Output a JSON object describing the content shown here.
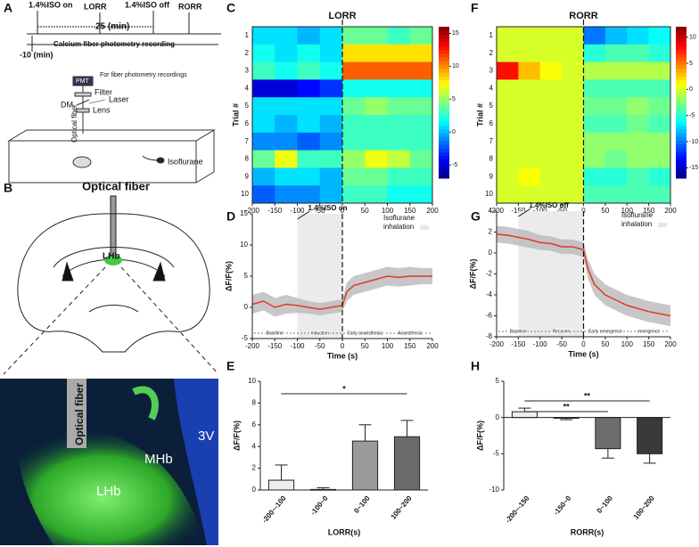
{
  "figure": {
    "panel_labels": [
      "A",
      "B",
      "C",
      "D",
      "E",
      "F",
      "G",
      "H"
    ],
    "timeline": {
      "iso_on": "1.4%ISO on",
      "lorr": "LORR",
      "iso_off": "1.4%ISO off",
      "rorr": "RORR",
      "duration": "25 (min)",
      "recording": "Calcium fiber photometry recording",
      "start": "-10 (min)"
    },
    "setup": {
      "pmt": "PMT",
      "recordings": "For fiber photometry recordings",
      "filter": "Filter",
      "laser": "Laser",
      "dm": "DM",
      "lens": "Lens",
      "fiber": "Optical fiber",
      "gas": "Isoflurane"
    },
    "brain": {
      "title": "Optical fiber",
      "region": "LHb"
    },
    "micrograph": {
      "fiber": "Optical fiber",
      "mhb": "MHb",
      "lhb": "LHb",
      "v3": "3V"
    }
  },
  "chart_data": [
    {
      "type": "heatmap",
      "title": "LORR",
      "ylabel": "Trial #",
      "categories": [
        "1",
        "2",
        "3",
        "4",
        "5",
        "6",
        "7",
        "8",
        "9",
        "10"
      ],
      "xbins": [
        -200,
        -150,
        -100,
        -50,
        0,
        50,
        100,
        150,
        200
      ],
      "values": [
        [
          1,
          1,
          0,
          1,
          4,
          4,
          3,
          4
        ],
        [
          2,
          1,
          2,
          1,
          8,
          8,
          8,
          8
        ],
        [
          3,
          2,
          3,
          2,
          11,
          11,
          11,
          11
        ],
        [
          -5,
          -5,
          -4,
          -3,
          2,
          2,
          2,
          2
        ],
        [
          1,
          1,
          1,
          1,
          4,
          5,
          4,
          4
        ],
        [
          1,
          0,
          1,
          0,
          3,
          3,
          3,
          3
        ],
        [
          -1,
          -1,
          -2,
          -1,
          3,
          3,
          3,
          3
        ],
        [
          4,
          7,
          3,
          3,
          5,
          7,
          6,
          4
        ],
        [
          0,
          1,
          1,
          0,
          4,
          4,
          3,
          3
        ],
        [
          -2,
          -1,
          -1,
          0,
          3,
          3,
          2,
          2
        ]
      ],
      "xlim": [
        -200,
        200
      ],
      "xticks": [
        -200,
        -150,
        -100,
        -50,
        0,
        50,
        100,
        150,
        200
      ],
      "marker_x": 0,
      "clim": [
        -7,
        16
      ],
      "cticks": [
        -5,
        0,
        5,
        10,
        15
      ]
    },
    {
      "type": "line",
      "ylabel": "ΔF/F(%)",
      "xlabel": "Time (s)",
      "x": [
        -200,
        -175,
        -150,
        -125,
        -100,
        -75,
        -50,
        -25,
        0,
        10,
        25,
        50,
        75,
        100,
        125,
        150,
        175,
        200
      ],
      "series": [
        {
          "color": "#e03a22",
          "values": [
            0.5,
            1,
            0,
            0.5,
            0.3,
            0,
            -0.3,
            0,
            0.3,
            2.5,
            3.5,
            4,
            4.5,
            5,
            4.8,
            5,
            5,
            5
          ],
          "errors": [
            1.5,
            1.5,
            1.5,
            1.5,
            1.2,
            1,
            1,
            1,
            1,
            1.5,
            1.5,
            1.5,
            1.5,
            1.5,
            1.5,
            1.5,
            1.3,
            1.3
          ]
        }
      ],
      "xlim": [
        -200,
        200
      ],
      "xticks": [
        -200,
        -150,
        -100,
        -50,
        0,
        50,
        100,
        150,
        200
      ],
      "ylim": [
        -5,
        15
      ],
      "yticks": [
        -5,
        0,
        5,
        10,
        15
      ],
      "marker_x": 0,
      "shade": [
        -100,
        0
      ],
      "annotation": "1.4%ISO on",
      "legend_lines": [
        "Isoflurane",
        "inhalation"
      ],
      "phases": [
        "Baseline",
        "Induction",
        "Early anaesthesia",
        "Anaesthesia"
      ]
    },
    {
      "type": "bar",
      "xlabel": "LORR(s)",
      "ylabel": "ΔF/F(%)",
      "categories": [
        "-200~-100",
        "-100~0",
        "0~100",
        "100~200"
      ],
      "values": [
        0.9,
        0.05,
        4.5,
        4.9
      ],
      "errors": [
        1.4,
        0.15,
        1.5,
        1.5
      ],
      "colors": [
        "#eeeeee",
        "#d6d6d6",
        "#9a9a9a",
        "#6a6a6a"
      ],
      "ylim": [
        0,
        10
      ],
      "yticks": [
        0,
        2,
        4,
        6,
        8,
        10
      ],
      "significance": [
        "*"
      ]
    },
    {
      "type": "heatmap",
      "title": "RORR",
      "ylabel": "Trial #",
      "categories": [
        "1",
        "2",
        "3",
        "4",
        "5",
        "6",
        "7",
        "8",
        "9",
        "10"
      ],
      "xbins": [
        -200,
        -150,
        -100,
        -50,
        0,
        50,
        100,
        150,
        200
      ],
      "values": [
        [
          0,
          0,
          0,
          0,
          -10,
          -8,
          -7,
          -6
        ],
        [
          0,
          0,
          0,
          0,
          -5,
          -4,
          -4,
          -5
        ],
        [
          8,
          3,
          1,
          0,
          -1,
          -1,
          -1,
          -1
        ],
        [
          0,
          0,
          0,
          0,
          -4,
          -4,
          -4,
          -4
        ],
        [
          0,
          0,
          0,
          0,
          -3,
          -3,
          -2,
          -3
        ],
        [
          0,
          0,
          0,
          0,
          -4,
          -4,
          -3,
          -4
        ],
        [
          0,
          0,
          0,
          0,
          -2,
          -2,
          -2,
          -2
        ],
        [
          0,
          0,
          0,
          0,
          -2,
          -3,
          -2,
          -2
        ],
        [
          0,
          1,
          0,
          0,
          -5,
          -5,
          -4,
          -5
        ],
        [
          0,
          0,
          0,
          0,
          -4,
          -4,
          -4,
          -4
        ]
      ],
      "xlim": [
        -200,
        200
      ],
      "xticks": [
        -200,
        -150,
        -100,
        -50,
        0,
        50,
        100,
        150,
        200
      ],
      "marker_x": 0,
      "clim": [
        -17,
        12
      ],
      "cticks": [
        -15,
        -10,
        -5,
        0,
        5,
        10
      ]
    },
    {
      "type": "line",
      "ylabel": "ΔF/F(%)",
      "xlabel": "Time (s)",
      "x": [
        -200,
        -175,
        -150,
        -125,
        -100,
        -75,
        -50,
        -25,
        0,
        10,
        25,
        50,
        75,
        100,
        125,
        150,
        175,
        200
      ],
      "series": [
        {
          "color": "#e03a22",
          "values": [
            1.8,
            1.7,
            1.5,
            1.3,
            1,
            0.9,
            0.6,
            0.6,
            0.3,
            -1.5,
            -3,
            -4,
            -4.5,
            -5,
            -5.3,
            -5.6,
            -5.8,
            -6
          ],
          "errors": [
            0.8,
            0.8,
            0.8,
            0.8,
            0.7,
            0.7,
            0.7,
            0.7,
            0.7,
            0.9,
            1,
            1,
            1,
            1,
            1,
            1,
            1,
            1
          ]
        }
      ],
      "xlim": [
        -200,
        200
      ],
      "xticks": [
        -200,
        -150,
        -100,
        -50,
        0,
        50,
        100,
        150,
        200
      ],
      "ylim": [
        -8,
        4
      ],
      "yticks": [
        -8,
        -6,
        -4,
        -2,
        0,
        2,
        4
      ],
      "marker_x": 0,
      "shade": [
        -150,
        0
      ],
      "annotation": "1.4%ISO off",
      "legend_lines": [
        "Isoflurane",
        "inhalation"
      ],
      "phases": [
        "Baseline",
        "Recovery",
        "Early emergence",
        "emergence"
      ]
    },
    {
      "type": "bar",
      "xlabel": "RORR(s)",
      "ylabel": "ΔF/F(%)",
      "categories": [
        "-200~-150",
        "-150~0",
        "0~100",
        "100~200"
      ],
      "values": [
        0.8,
        -0.1,
        -4.3,
        -5.0
      ],
      "errors": [
        0.5,
        0.2,
        1.3,
        1.3
      ],
      "colors": [
        "#eeeeee",
        "#d6d6d6",
        "#6e6e6e",
        "#3a3a3a"
      ],
      "ylim": [
        -10,
        5
      ],
      "yticks": [
        -10,
        -5,
        0,
        5
      ],
      "significance": [
        "**",
        "**"
      ]
    }
  ]
}
